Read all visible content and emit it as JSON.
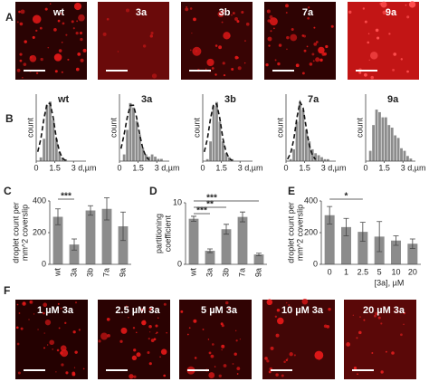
{
  "panel_letters": [
    "A",
    "B",
    "C",
    "D",
    "E",
    "F"
  ],
  "images_top": [
    "wt",
    "3a",
    "3b",
    "7a",
    "9a"
  ],
  "images_bottom": [
    "1 µM 3a",
    "2.5 µM 3a",
    "5 µM 3a",
    "10 µM 3a",
    "20 µM 3a"
  ],
  "chart_data": [
    {
      "type": "histogram",
      "title": "wt",
      "ylabel": "count",
      "xlabel": "d,µm",
      "bins": [
        0,
        0.25,
        0.5,
        0.75,
        1,
        1.25,
        1.5,
        1.75,
        2,
        2.25,
        2.5,
        2.75,
        3,
        3.25,
        3.5,
        3.75,
        4
      ],
      "counts": [
        0,
        2,
        12,
        30,
        32,
        22,
        12,
        5,
        2,
        1,
        0,
        0,
        0,
        0,
        0,
        0
      ],
      "fit": {
        "x": [
          0.125,
          0.375,
          0.625,
          0.875,
          1.125,
          1.375,
          1.625,
          1.875,
          2.125,
          2.375
        ],
        "values": [
          5,
          12,
          23,
          31,
          31,
          23,
          12,
          5,
          1.4,
          0.3
        ]
      },
      "xlim": [
        0,
        4
      ],
      "xticks": [
        0,
        1.5,
        3
      ],
      "ylim": [
        0,
        36
      ],
      "color": "#8c8c8c"
    },
    {
      "type": "histogram",
      "title": "3a",
      "ylabel": "count",
      "xlabel": "d,µm",
      "bins": [
        0,
        0.25,
        0.5,
        0.75,
        1,
        1.25,
        1.5,
        1.75,
        2,
        2.25,
        2.5,
        2.75,
        3,
        3.25,
        3.5,
        3.75,
        4
      ],
      "counts": [
        0,
        3,
        14,
        26,
        24,
        18,
        12,
        6,
        3,
        2,
        3,
        2,
        1,
        1,
        0,
        0
      ],
      "fit": {
        "x": [
          0.125,
          0.375,
          0.625,
          0.875,
          1.125,
          1.375,
          1.625,
          1.875,
          2.125,
          2.375
        ],
        "values": [
          5.6,
          12,
          19.6,
          25,
          25,
          19.6,
          12,
          5.6,
          2.1,
          0.6
        ]
      },
      "xlim": [
        0,
        4
      ],
      "xticks": [
        0,
        1.5,
        3
      ],
      "ylim": [
        0,
        30
      ],
      "color": "#8c8c8c"
    },
    {
      "type": "histogram",
      "title": "3b",
      "ylabel": "count",
      "xlabel": "d,µm",
      "bins": [
        0,
        0.25,
        0.5,
        0.75,
        1,
        1.25,
        1.5,
        1.75,
        2,
        2.25,
        2.5,
        2.75,
        3,
        3.25,
        3.5,
        3.75,
        4
      ],
      "counts": [
        0,
        1,
        10,
        28,
        30,
        20,
        10,
        4,
        2,
        1,
        0,
        0,
        0,
        0,
        0,
        0
      ],
      "fit": {
        "x": [
          0.125,
          0.375,
          0.625,
          0.875,
          1.125,
          1.375,
          1.625,
          1.875,
          2.125,
          2.375
        ],
        "values": [
          4.7,
          11.3,
          21.6,
          29,
          29,
          21.6,
          11.3,
          4.7,
          1.3,
          0.3
        ]
      },
      "xlim": [
        0,
        4
      ],
      "xticks": [
        0,
        1.5,
        3
      ],
      "ylim": [
        0,
        34
      ],
      "color": "#8c8c8c"
    },
    {
      "type": "histogram",
      "title": "7a",
      "ylabel": "count",
      "xlabel": "d,µm",
      "bins": [
        0,
        0.25,
        0.5,
        0.75,
        1,
        1.25,
        1.5,
        1.75,
        2,
        2.25,
        2.5,
        2.75,
        3,
        3.25,
        3.5,
        3.75,
        4
      ],
      "counts": [
        0,
        1,
        6,
        20,
        30,
        26,
        16,
        10,
        6,
        4,
        3,
        2,
        1,
        1,
        0,
        0
      ],
      "fit": {
        "x": [
          0.125,
          0.375,
          0.625,
          0.875,
          1.125,
          1.375,
          1.625,
          1.875,
          2.125,
          2.375
        ],
        "values": [
          1,
          4,
          11,
          22,
          30,
          27,
          17,
          8,
          3,
          0.8
        ]
      },
      "xlim": [
        0,
        4
      ],
      "xticks": [
        0,
        1.5,
        3
      ],
      "ylim": [
        0,
        34
      ],
      "color": "#8c8c8c"
    },
    {
      "type": "histogram",
      "title": "9a",
      "ylabel": "count",
      "xlabel": "d,µm",
      "bins": [
        0,
        0.25,
        0.5,
        0.75,
        1,
        1.25,
        1.5,
        1.75,
        2,
        2.25,
        2.5,
        2.75,
        3,
        3.25,
        3.5,
        3.75,
        4
      ],
      "counts": [
        0,
        4,
        14,
        20,
        19,
        17,
        17,
        14,
        13,
        10,
        9,
        5,
        4,
        2,
        1,
        0
      ],
      "xlim": [
        0,
        4
      ],
      "xticks": [
        0,
        1.5,
        3
      ],
      "ylim": [
        0,
        26
      ],
      "color": "#8c8c8c"
    },
    {
      "type": "bar",
      "ylabel": [
        "droplet count per",
        "mm^2 coverslip"
      ],
      "categories": [
        "wt",
        "3a",
        "3b",
        "7a",
        "9a"
      ],
      "values": [
        300,
        125,
        340,
        350,
        240
      ],
      "errors": [
        50,
        35,
        30,
        70,
        90
      ],
      "ylim": [
        0,
        400
      ],
      "yticks": [
        0,
        200,
        400
      ],
      "color": "#8c8c8c",
      "significance": [
        {
          "label": "***",
          "pair": [
            0,
            1
          ]
        }
      ]
    },
    {
      "type": "bar",
      "ylabel": [
        "partitioning",
        "coefficient"
      ],
      "categories": [
        "wt",
        "3a",
        "3b",
        "7a",
        "9a"
      ],
      "values": [
        7.4,
        2.2,
        5.7,
        7.7,
        1.6
      ],
      "errors": [
        0.4,
        0.3,
        0.8,
        0.8,
        0.2
      ],
      "ylim": [
        0,
        10
      ],
      "yticks": [
        0,
        10
      ],
      "color": "#8c8c8c",
      "significance": [
        {
          "label": "***",
          "pair": [
            0,
            4
          ]
        },
        {
          "label": "**",
          "pair": [
            0,
            2
          ]
        },
        {
          "label": "***",
          "pair": [
            0,
            1
          ]
        }
      ]
    },
    {
      "type": "bar",
      "ylabel": [
        "droplet count per",
        "mm^2 coverslip"
      ],
      "xlabel": "[3a], µM",
      "categories": [
        "0",
        "1",
        "2.5",
        "5",
        "10",
        "20"
      ],
      "values": [
        310,
        235,
        205,
        175,
        150,
        130
      ],
      "errors": [
        55,
        55,
        60,
        95,
        30,
        30
      ],
      "ylim": [
        0,
        400
      ],
      "yticks": [
        0,
        200,
        400
      ],
      "color": "#8c8c8c",
      "significance": [
        {
          "label": "*",
          "pair": [
            0,
            2
          ]
        }
      ]
    }
  ]
}
